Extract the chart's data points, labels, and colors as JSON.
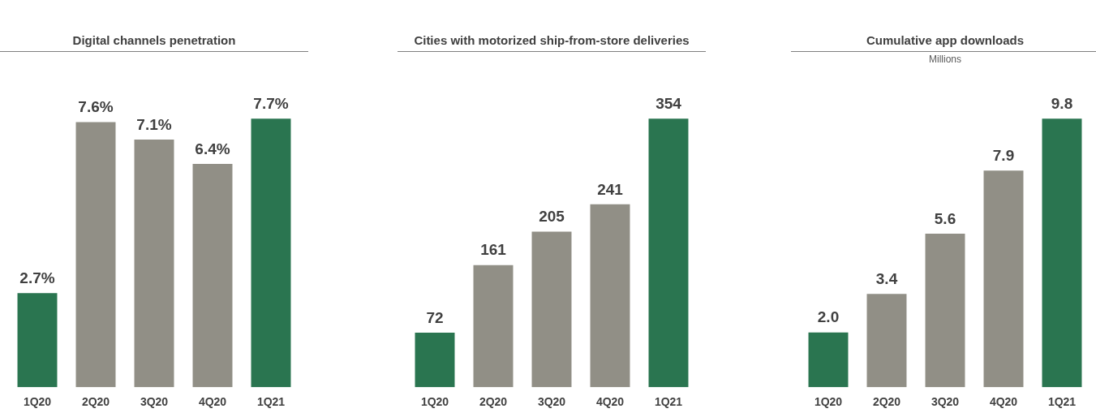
{
  "chart_data": [
    {
      "type": "bar",
      "title": "Digital channels penetration",
      "categories": [
        "1Q20",
        "2Q20",
        "3Q20",
        "4Q20",
        "1Q21"
      ],
      "values": [
        2.7,
        7.6,
        7.1,
        6.4,
        7.7
      ],
      "colors": [
        "#2a7550",
        "#918f86",
        "#918f86",
        "#918f86",
        "#2a7550"
      ],
      "value_labels": [
        "2.7%",
        "7.6%",
        "7.1%",
        "6.4%",
        "7.7%"
      ]
    },
    {
      "type": "bar",
      "title": "Cities with motorized ship-from-store deliveries",
      "categories": [
        "1Q20",
        "2Q20",
        "3Q20",
        "4Q20",
        "1Q21"
      ],
      "values": [
        72,
        161,
        205,
        241,
        354
      ],
      "colors": [
        "#2a7550",
        "#918f86",
        "#918f86",
        "#918f86",
        "#2a7550"
      ],
      "data_labels": true
    },
    {
      "type": "bar",
      "title": "Cumulative app downloads",
      "subtitle": "Millions",
      "categories": [
        "1Q20",
        "2Q20",
        "3Q20",
        "4Q20",
        "1Q21"
      ],
      "values": [
        2.0,
        3.4,
        5.6,
        7.9,
        9.8
      ],
      "colors": [
        "#2a7550",
        "#918f86",
        "#918f86",
        "#918f86",
        "#2a7550"
      ],
      "value_labels": [
        "2.0",
        "3.4",
        "5.6",
        "7.9",
        "9.8"
      ]
    }
  ]
}
